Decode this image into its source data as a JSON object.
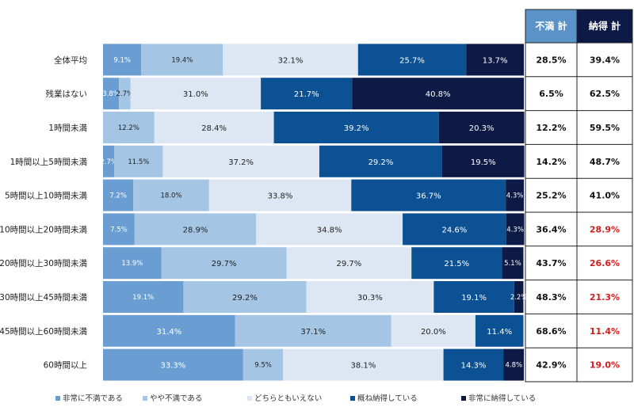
{
  "chart_data": {
    "type": "bar",
    "orientation": "horizontal",
    "stacked": true,
    "percent_stacked": true,
    "xlim": [
      0,
      100
    ],
    "categories": [
      "全体平均",
      "残業はない",
      "1時間未満",
      "1時間以上5時間未満",
      "5時間以上10時間未満",
      "10時間以上20時間未満",
      "20時間以上30時間未満",
      "30時間以上45時間未満",
      "45時間以上60時間未満",
      "60時間以上"
    ],
    "series": [
      {
        "name": "非常に不満である",
        "color": "#6a9ed2",
        "text_color": "#ffffff",
        "values": [
          9.1,
          3.8,
          0,
          2.7,
          7.2,
          7.5,
          13.9,
          19.1,
          31.4,
          33.3
        ]
      },
      {
        "name": "やや不満である",
        "color": "#a5c5e5",
        "text_color": "#222222",
        "values": [
          19.4,
          2.7,
          12.2,
          11.5,
          18.0,
          28.9,
          29.7,
          29.2,
          37.1,
          9.5
        ]
      },
      {
        "name": "どちらともいえない",
        "color": "#dce7f3",
        "text_color": "#222222",
        "values": [
          32.1,
          31.0,
          28.4,
          37.2,
          33.8,
          34.8,
          29.7,
          30.3,
          20.0,
          38.1
        ]
      },
      {
        "name": "概ね納得している",
        "color": "#0b5193",
        "text_color": "#ffffff",
        "values": [
          25.7,
          21.7,
          39.2,
          29.2,
          36.7,
          24.6,
          21.5,
          19.1,
          11.4,
          14.3
        ]
      },
      {
        "name": "非常に納得している",
        "color": "#0d1a45",
        "text_color": "#ffffff",
        "values": [
          13.7,
          40.8,
          20.3,
          19.5,
          4.3,
          4.3,
          5.1,
          2.2,
          0,
          4.8
        ]
      }
    ],
    "table": {
      "columns": [
        "不満 計",
        "納得 計"
      ],
      "header_colors": [
        "#5b93c9",
        "#0d1a45"
      ],
      "dissatisfied_total": [
        28.5,
        6.5,
        12.2,
        14.2,
        25.2,
        36.4,
        43.7,
        48.3,
        68.6,
        42.9
      ],
      "satisfied_total": [
        39.4,
        62.5,
        59.5,
        48.7,
        41.0,
        28.9,
        26.6,
        21.3,
        11.4,
        19.0
      ],
      "satisfied_highlight": [
        false,
        false,
        false,
        false,
        false,
        true,
        true,
        true,
        true,
        true
      ],
      "highlight_color": "#d01f1f"
    },
    "legend_position": "bottom"
  }
}
